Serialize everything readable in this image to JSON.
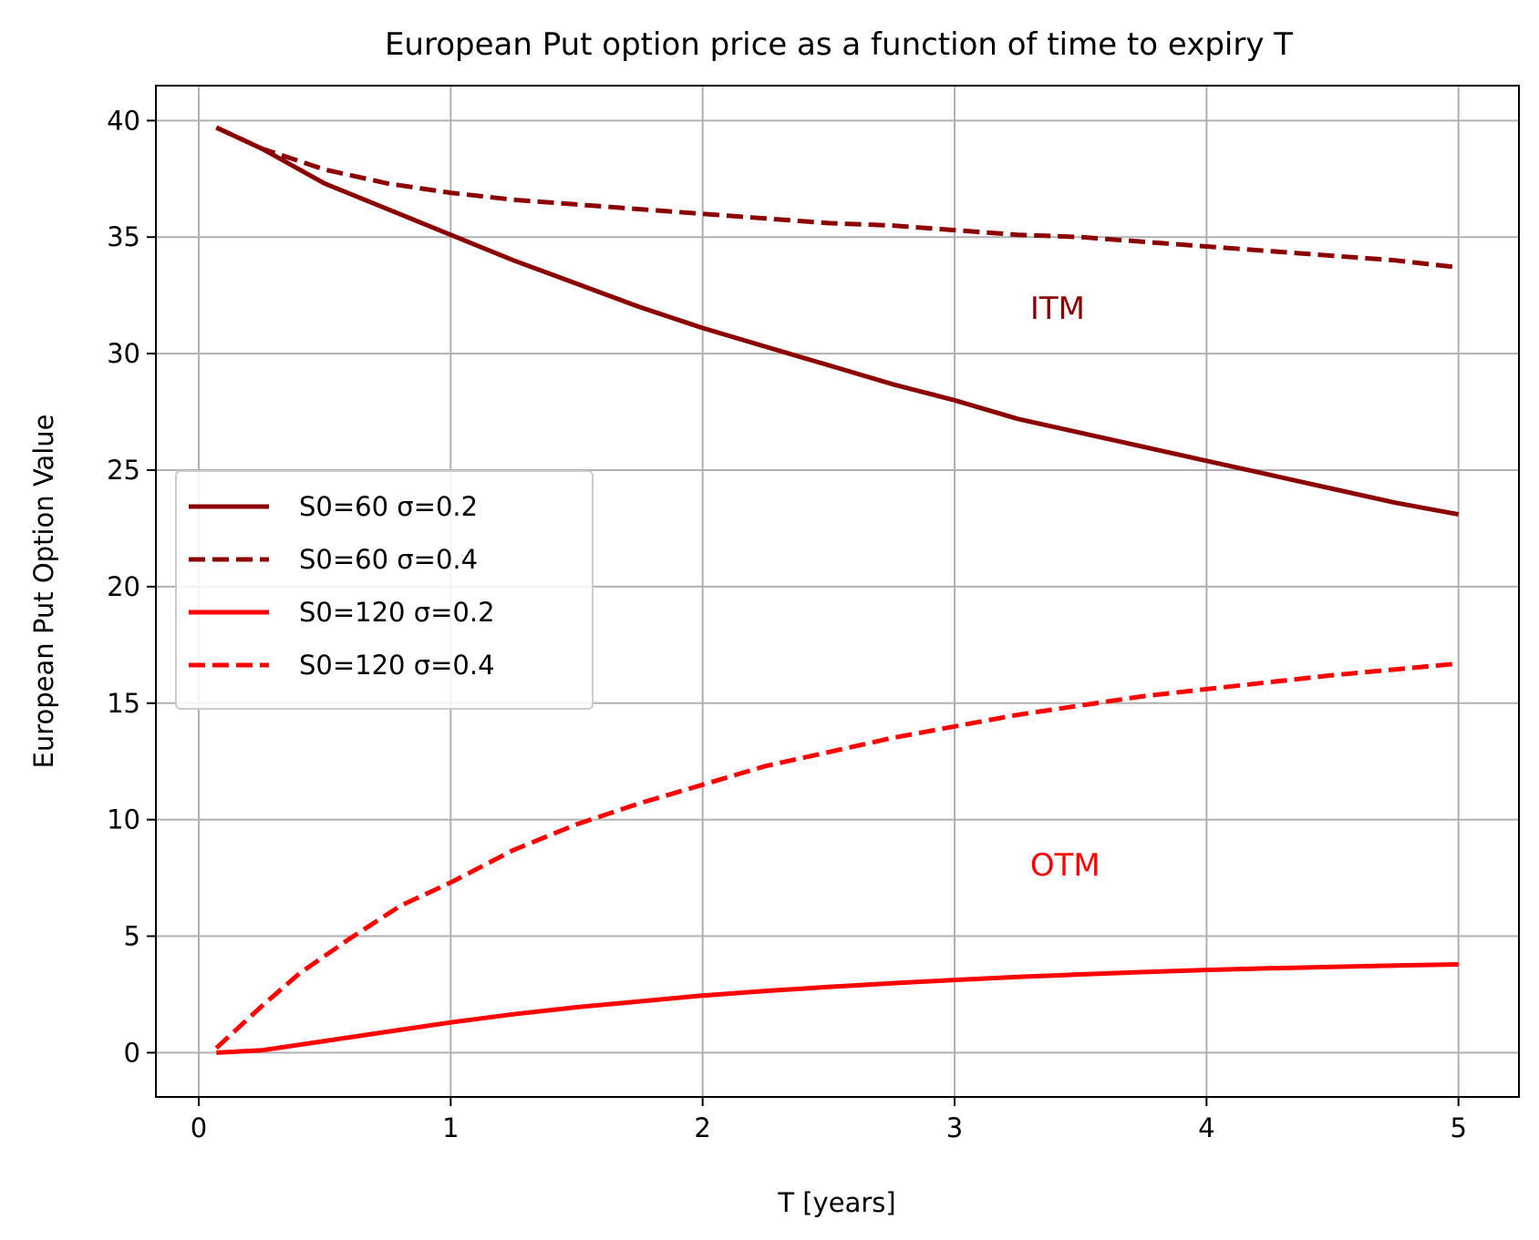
{
  "chart_data": {
    "type": "line",
    "title": "European Put option price as a function of time to expiry T",
    "xlabel": "T [years]",
    "ylabel": "European Put Option Value",
    "xlim": [
      -0.17,
      5.24
    ],
    "ylim": [
      -1.9,
      41.5
    ],
    "xticks": [
      0,
      1,
      2,
      3,
      4,
      5
    ],
    "yticks": [
      0,
      5,
      10,
      15,
      20,
      25,
      30,
      35,
      40
    ],
    "grid": true,
    "legend_position": "center-left",
    "series": [
      {
        "name": "S0=60 σ=0.2",
        "color": "#8b0000",
        "dash": "solid",
        "x": [
          0.07,
          0.25,
          0.5,
          0.75,
          1.0,
          1.25,
          1.5,
          1.75,
          2.0,
          2.25,
          2.5,
          2.75,
          3.0,
          3.25,
          3.5,
          3.75,
          4.0,
          4.25,
          4.5,
          4.75,
          5.0
        ],
        "y": [
          39.7,
          38.8,
          37.3,
          36.2,
          35.1,
          34.0,
          33.0,
          32.0,
          31.1,
          30.3,
          29.5,
          28.7,
          28.0,
          27.2,
          26.6,
          26.0,
          25.4,
          24.8,
          24.2,
          23.6,
          23.1
        ]
      },
      {
        "name": "S0=60 σ=0.4",
        "color": "#8b0000",
        "dash": "dashed",
        "x": [
          0.07,
          0.25,
          0.5,
          0.75,
          1.0,
          1.25,
          1.5,
          1.75,
          2.0,
          2.25,
          2.5,
          2.75,
          3.0,
          3.25,
          3.5,
          3.75,
          4.0,
          4.25,
          4.5,
          4.75,
          5.0
        ],
        "y": [
          39.7,
          38.8,
          37.9,
          37.3,
          36.9,
          36.6,
          36.4,
          36.2,
          36.0,
          35.8,
          35.6,
          35.5,
          35.3,
          35.1,
          35.0,
          34.8,
          34.6,
          34.4,
          34.2,
          34.0,
          33.7
        ]
      },
      {
        "name": "S0=120 σ=0.2",
        "color": "#ff0000",
        "dash": "solid",
        "x": [
          0.07,
          0.25,
          0.5,
          0.75,
          1.0,
          1.25,
          1.5,
          1.75,
          2.0,
          2.25,
          2.5,
          2.75,
          3.0,
          3.25,
          3.5,
          3.75,
          4.0,
          4.25,
          4.5,
          4.75,
          5.0
        ],
        "y": [
          0.0,
          0.1,
          0.5,
          0.9,
          1.3,
          1.65,
          1.95,
          2.2,
          2.45,
          2.65,
          2.82,
          2.98,
          3.12,
          3.25,
          3.36,
          3.46,
          3.55,
          3.62,
          3.68,
          3.74,
          3.79
        ]
      },
      {
        "name": "S0=120 σ=0.4",
        "color": "#ff0000",
        "dash": "dashed",
        "x": [
          0.07,
          0.25,
          0.4,
          0.6,
          0.8,
          1.0,
          1.25,
          1.5,
          1.75,
          2.0,
          2.25,
          2.5,
          2.75,
          3.0,
          3.25,
          3.5,
          3.75,
          4.0,
          4.25,
          4.5,
          4.75,
          5.0
        ],
        "y": [
          0.2,
          2.0,
          3.4,
          4.9,
          6.3,
          7.3,
          8.7,
          9.8,
          10.7,
          11.5,
          12.3,
          12.9,
          13.5,
          14.0,
          14.5,
          14.9,
          15.3,
          15.6,
          15.9,
          16.2,
          16.45,
          16.7
        ]
      }
    ],
    "annotations": [
      {
        "text": "ITM",
        "x": 3.3,
        "y": 31.5,
        "color": "#8b0000"
      },
      {
        "text": "OTM",
        "x": 3.3,
        "y": 7.6,
        "color": "#ff0000"
      }
    ]
  }
}
